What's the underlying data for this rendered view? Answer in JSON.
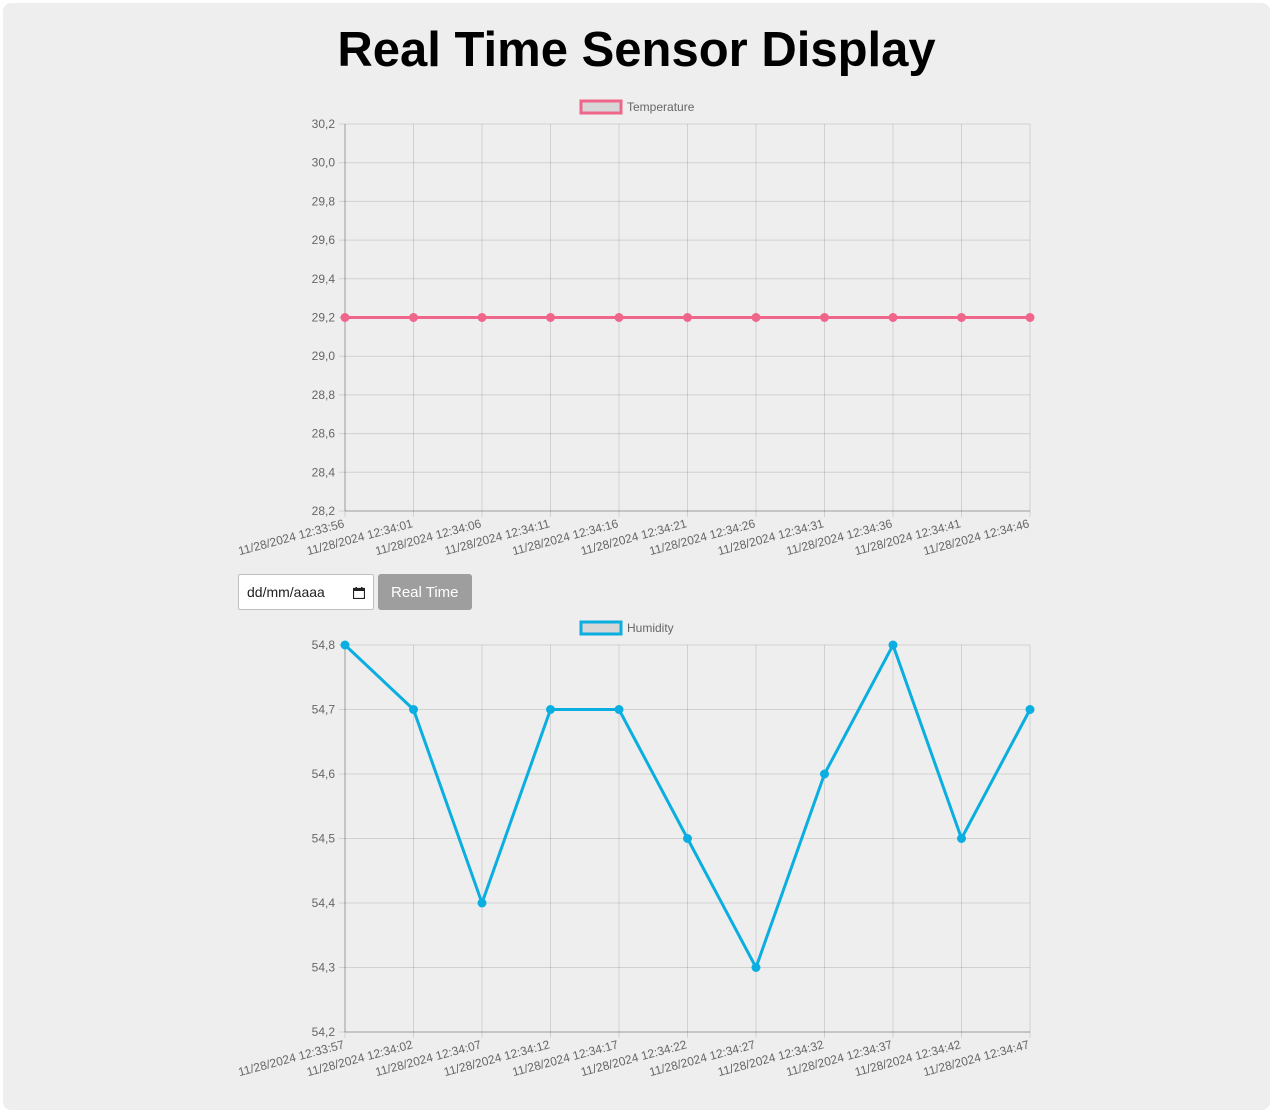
{
  "header": {
    "title": "Real Time Sensor Display"
  },
  "controls": {
    "date_placeholder": "dd/mm/aaaa",
    "realtime_label": "Real Time",
    "button_color": "#9e9e9e"
  },
  "icons": {
    "date_picker": "calendar-icon"
  },
  "chart_data": [
    {
      "type": "line",
      "legend_position": "top",
      "grid": true,
      "x": [
        "11/28/2024 12:33:56",
        "11/28/2024 12:34:01",
        "11/28/2024 12:34:06",
        "11/28/2024 12:34:11",
        "11/28/2024 12:34:16",
        "11/28/2024 12:34:21",
        "11/28/2024 12:34:26",
        "11/28/2024 12:34:31",
        "11/28/2024 12:34:36",
        "11/28/2024 12:34:41",
        "11/28/2024 12:34:46"
      ],
      "series": [
        {
          "name": "Temperature",
          "color": "#f0668b",
          "values": [
            29.2,
            29.2,
            29.2,
            29.2,
            29.2,
            29.2,
            29.2,
            29.2,
            29.2,
            29.2,
            29.2
          ]
        }
      ],
      "ylim": [
        28.2,
        30.2
      ],
      "yticks": [
        "30,2",
        "30,0",
        "29,8",
        "29,6",
        "29,4",
        "29,2",
        "29,0",
        "28,8",
        "28,6",
        "28,4",
        "28,2"
      ]
    },
    {
      "type": "line",
      "legend_position": "top",
      "grid": true,
      "x": [
        "11/28/2024 12:33:57",
        "11/28/2024 12:34:02",
        "11/28/2024 12:34:07",
        "11/28/2024 12:34:12",
        "11/28/2024 12:34:17",
        "11/28/2024 12:34:22",
        "11/28/2024 12:34:27",
        "11/28/2024 12:34:32",
        "11/28/2024 12:34:37",
        "11/28/2024 12:34:42",
        "11/28/2024 12:34:47"
      ],
      "series": [
        {
          "name": "Humidity",
          "color": "#0aaee0",
          "values": [
            54.8,
            54.7,
            54.4,
            54.7,
            54.7,
            54.5,
            54.3,
            54.6,
            54.8,
            54.5,
            54.7
          ]
        }
      ],
      "ylim": [
        54.2,
        54.8
      ],
      "yticks": [
        "54,8",
        "54,7",
        "54,6",
        "54,5",
        "54,4",
        "54,3",
        "54,2"
      ]
    }
  ]
}
